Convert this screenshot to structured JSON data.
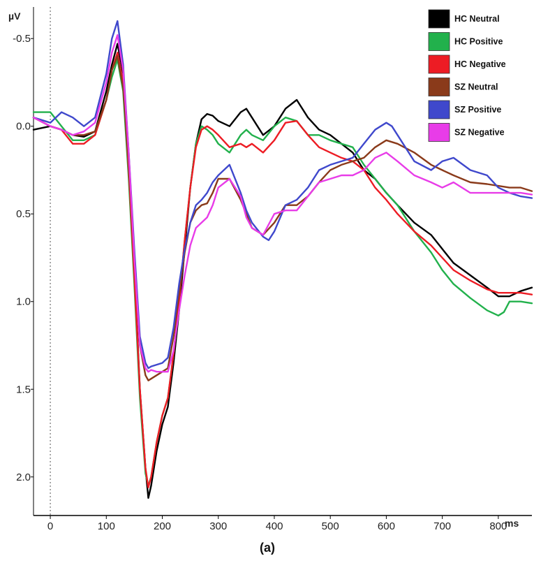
{
  "chart_data": {
    "type": "line",
    "ylabel": "µV",
    "xlabel": "ms",
    "panel_label": "(a)",
    "y_inverted": true,
    "xlim": [
      -30,
      860
    ],
    "ylim": [
      -0.68,
      2.22
    ],
    "xticks": [
      0,
      100,
      200,
      300,
      400,
      500,
      600,
      700,
      800
    ],
    "yticks": [
      -0.5,
      0.0,
      0.5,
      1.0,
      1.5,
      2.0
    ],
    "ytick_labels": [
      "-0.5",
      "0.0",
      "0.5",
      "1.0",
      "1.5",
      "2.0"
    ],
    "onset_marker_x": 0,
    "legend_position": "top-right",
    "series": [
      {
        "name": "HC Neutral",
        "color": "#000000",
        "x": [
          -30,
          0,
          20,
          40,
          60,
          80,
          100,
          110,
          120,
          130,
          140,
          150,
          160,
          170,
          175,
          180,
          190,
          200,
          210,
          220,
          230,
          240,
          250,
          260,
          270,
          280,
          290,
          300,
          320,
          340,
          350,
          360,
          380,
          400,
          420,
          440,
          460,
          480,
          500,
          520,
          540,
          560,
          580,
          600,
          620,
          650,
          680,
          700,
          720,
          750,
          780,
          800,
          820,
          840,
          860
        ],
        "y": [
          0.02,
          0.0,
          0.02,
          0.05,
          0.06,
          0.03,
          -0.2,
          -0.35,
          -0.47,
          -0.3,
          0.2,
          0.8,
          1.5,
          1.95,
          2.12,
          2.05,
          1.85,
          1.7,
          1.6,
          1.35,
          1.05,
          0.7,
          0.35,
          0.1,
          -0.04,
          -0.07,
          -0.06,
          -0.03,
          0.0,
          -0.08,
          -0.1,
          -0.05,
          0.05,
          0.0,
          -0.1,
          -0.15,
          -0.05,
          0.02,
          0.05,
          0.1,
          0.15,
          0.25,
          0.3,
          0.38,
          0.45,
          0.55,
          0.62,
          0.7,
          0.78,
          0.85,
          0.92,
          0.97,
          0.97,
          0.94,
          0.92
        ]
      },
      {
        "name": "HC Positive",
        "color": "#22b14c",
        "x": [
          -30,
          0,
          20,
          40,
          60,
          80,
          100,
          110,
          120,
          130,
          140,
          150,
          160,
          170,
          175,
          180,
          190,
          200,
          210,
          220,
          230,
          240,
          250,
          260,
          270,
          280,
          290,
          300,
          320,
          340,
          350,
          360,
          380,
          400,
          420,
          440,
          460,
          480,
          500,
          520,
          540,
          560,
          580,
          600,
          620,
          650,
          680,
          700,
          720,
          750,
          780,
          800,
          810,
          820,
          840,
          860
        ],
        "y": [
          -0.08,
          -0.08,
          0.0,
          0.08,
          0.08,
          0.05,
          -0.15,
          -0.28,
          -0.38,
          -0.2,
          0.3,
          0.9,
          1.55,
          1.98,
          2.05,
          2.0,
          1.8,
          1.65,
          1.55,
          1.3,
          1.0,
          0.65,
          0.35,
          0.1,
          0.0,
          0.02,
          0.05,
          0.1,
          0.15,
          0.05,
          0.02,
          0.05,
          0.08,
          0.0,
          -0.05,
          -0.03,
          0.05,
          0.05,
          0.08,
          0.1,
          0.12,
          0.22,
          0.3,
          0.38,
          0.45,
          0.6,
          0.72,
          0.82,
          0.9,
          0.98,
          1.05,
          1.08,
          1.06,
          1.0,
          1.0,
          1.01
        ]
      },
      {
        "name": "HC Negative",
        "color": "#ed1c24",
        "x": [
          -30,
          0,
          20,
          40,
          60,
          80,
          100,
          110,
          120,
          130,
          140,
          150,
          160,
          170,
          175,
          180,
          190,
          200,
          210,
          220,
          230,
          240,
          250,
          260,
          270,
          280,
          290,
          300,
          320,
          340,
          350,
          360,
          380,
          400,
          420,
          440,
          460,
          480,
          500,
          520,
          540,
          560,
          580,
          600,
          620,
          650,
          680,
          700,
          720,
          750,
          780,
          800,
          820,
          840,
          860
        ],
        "y": [
          -0.05,
          0.0,
          0.02,
          0.1,
          0.1,
          0.05,
          -0.15,
          -0.32,
          -0.42,
          -0.25,
          0.25,
          0.85,
          1.5,
          1.95,
          2.06,
          2.0,
          1.8,
          1.65,
          1.55,
          1.3,
          1.0,
          0.65,
          0.35,
          0.12,
          0.02,
          0.0,
          0.02,
          0.05,
          0.12,
          0.1,
          0.12,
          0.1,
          0.15,
          0.08,
          -0.02,
          -0.03,
          0.05,
          0.12,
          0.15,
          0.18,
          0.2,
          0.25,
          0.35,
          0.42,
          0.5,
          0.6,
          0.68,
          0.75,
          0.82,
          0.88,
          0.93,
          0.95,
          0.95,
          0.95,
          0.96
        ]
      },
      {
        "name": "SZ Neutral",
        "color": "#8a3a1a",
        "x": [
          -30,
          0,
          20,
          40,
          60,
          80,
          100,
          110,
          120,
          130,
          140,
          150,
          160,
          170,
          175,
          180,
          190,
          200,
          210,
          220,
          230,
          240,
          250,
          260,
          270,
          280,
          290,
          300,
          320,
          340,
          350,
          360,
          380,
          400,
          420,
          440,
          460,
          480,
          500,
          520,
          540,
          560,
          580,
          600,
          620,
          650,
          680,
          700,
          720,
          750,
          780,
          800,
          820,
          840,
          860
        ],
        "y": [
          -0.05,
          0.0,
          0.02,
          0.05,
          0.05,
          0.03,
          -0.15,
          -0.32,
          -0.4,
          -0.22,
          0.2,
          0.75,
          1.25,
          1.42,
          1.45,
          1.44,
          1.42,
          1.4,
          1.38,
          1.2,
          0.95,
          0.72,
          0.55,
          0.48,
          0.45,
          0.44,
          0.38,
          0.3,
          0.3,
          0.42,
          0.5,
          0.58,
          0.62,
          0.55,
          0.45,
          0.45,
          0.4,
          0.32,
          0.25,
          0.22,
          0.2,
          0.18,
          0.12,
          0.08,
          0.1,
          0.15,
          0.22,
          0.25,
          0.28,
          0.32,
          0.33,
          0.34,
          0.35,
          0.35,
          0.37
        ]
      },
      {
        "name": "SZ Positive",
        "color": "#3f48cc",
        "x": [
          -30,
          0,
          20,
          40,
          60,
          80,
          100,
          110,
          120,
          130,
          140,
          150,
          160,
          170,
          175,
          180,
          190,
          200,
          210,
          220,
          230,
          240,
          250,
          260,
          270,
          280,
          290,
          300,
          320,
          340,
          350,
          360,
          380,
          390,
          400,
          420,
          440,
          460,
          480,
          500,
          520,
          540,
          560,
          580,
          600,
          610,
          620,
          650,
          680,
          700,
          720,
          750,
          780,
          800,
          820,
          840,
          860
        ],
        "y": [
          -0.05,
          -0.02,
          -0.08,
          -0.05,
          0.0,
          -0.05,
          -0.3,
          -0.5,
          -0.6,
          -0.35,
          0.15,
          0.7,
          1.2,
          1.35,
          1.38,
          1.37,
          1.36,
          1.35,
          1.32,
          1.15,
          0.9,
          0.7,
          0.55,
          0.45,
          0.42,
          0.38,
          0.32,
          0.28,
          0.22,
          0.38,
          0.48,
          0.55,
          0.63,
          0.65,
          0.6,
          0.45,
          0.42,
          0.35,
          0.25,
          0.22,
          0.2,
          0.18,
          0.1,
          0.02,
          -0.02,
          0.0,
          0.05,
          0.2,
          0.25,
          0.2,
          0.18,
          0.25,
          0.28,
          0.35,
          0.38,
          0.4,
          0.41
        ]
      },
      {
        "name": "SZ Negative",
        "color": "#e83ce8",
        "x": [
          -30,
          0,
          20,
          40,
          60,
          80,
          100,
          110,
          120,
          130,
          140,
          150,
          160,
          170,
          175,
          180,
          190,
          200,
          210,
          220,
          230,
          240,
          250,
          260,
          270,
          280,
          290,
          300,
          320,
          340,
          350,
          360,
          380,
          400,
          420,
          440,
          460,
          480,
          500,
          520,
          540,
          560,
          580,
          600,
          620,
          650,
          680,
          700,
          720,
          750,
          780,
          800,
          820,
          840,
          860
        ],
        "y": [
          -0.05,
          0.0,
          0.02,
          0.05,
          0.03,
          -0.02,
          -0.25,
          -0.42,
          -0.52,
          -0.32,
          0.15,
          0.75,
          1.25,
          1.38,
          1.4,
          1.39,
          1.4,
          1.4,
          1.4,
          1.28,
          1.05,
          0.85,
          0.68,
          0.58,
          0.55,
          0.52,
          0.45,
          0.35,
          0.3,
          0.4,
          0.52,
          0.58,
          0.62,
          0.5,
          0.48,
          0.48,
          0.4,
          0.32,
          0.3,
          0.28,
          0.28,
          0.25,
          0.18,
          0.15,
          0.2,
          0.28,
          0.32,
          0.35,
          0.32,
          0.38,
          0.38,
          0.38,
          0.38,
          0.38,
          0.39
        ]
      }
    ]
  }
}
